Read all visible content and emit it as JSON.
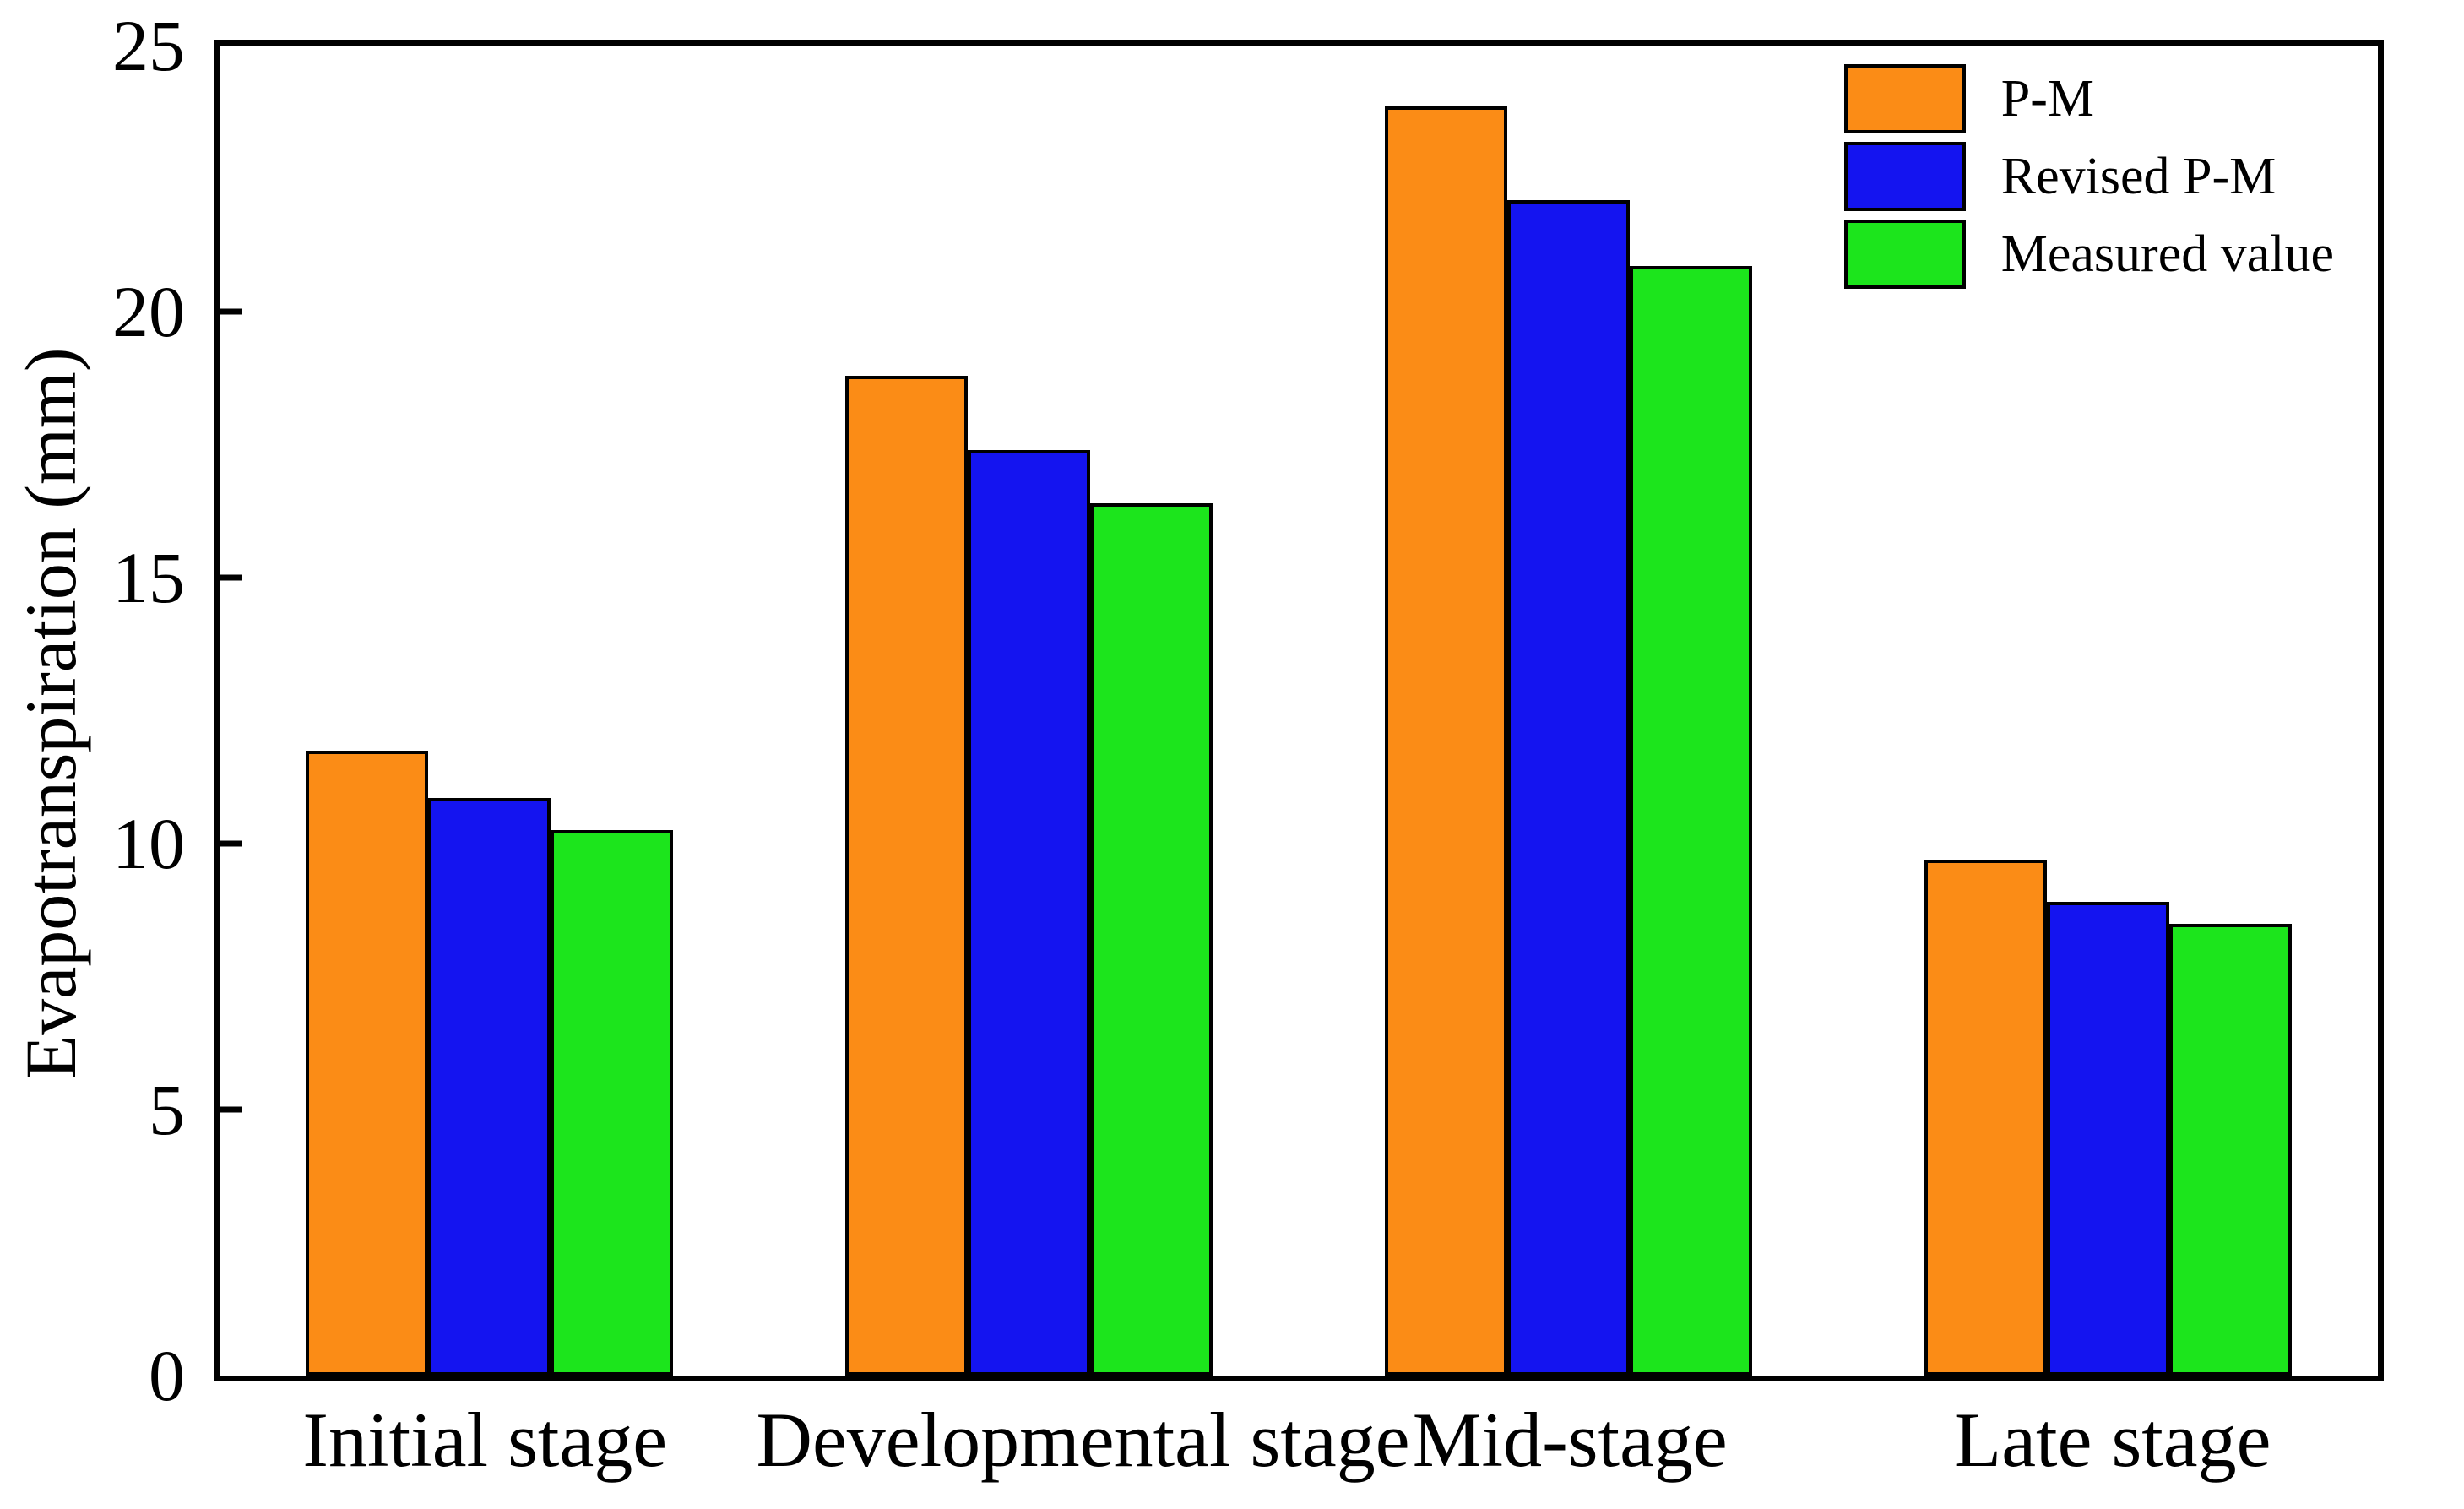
{
  "chart_data": {
    "type": "bar",
    "title": "",
    "xlabel": "",
    "ylabel": "Evapotranspiration (mm)",
    "ylim": [
      0,
      25
    ],
    "yticks": [
      0,
      5,
      10,
      15,
      20,
      25
    ],
    "grid": false,
    "legend_position": "top-right-inside",
    "categories": [
      "Initial stage",
      "Developmental stage",
      "Mid-stage",
      "Late stage"
    ],
    "series": [
      {
        "name": "P-M",
        "color": "#FB8C16",
        "values": [
          11.75,
          18.8,
          23.85,
          9.7
        ]
      },
      {
        "name": "Revised P-M",
        "color": "#1414F0",
        "values": [
          10.85,
          17.4,
          22.1,
          8.9
        ]
      },
      {
        "name": "Measured value",
        "color": "#1CE51C",
        "values": [
          10.25,
          16.4,
          20.85,
          8.5
        ]
      }
    ],
    "colors": {
      "axis": "#000000",
      "text": "#000000",
      "background": "#ffffff"
    }
  }
}
